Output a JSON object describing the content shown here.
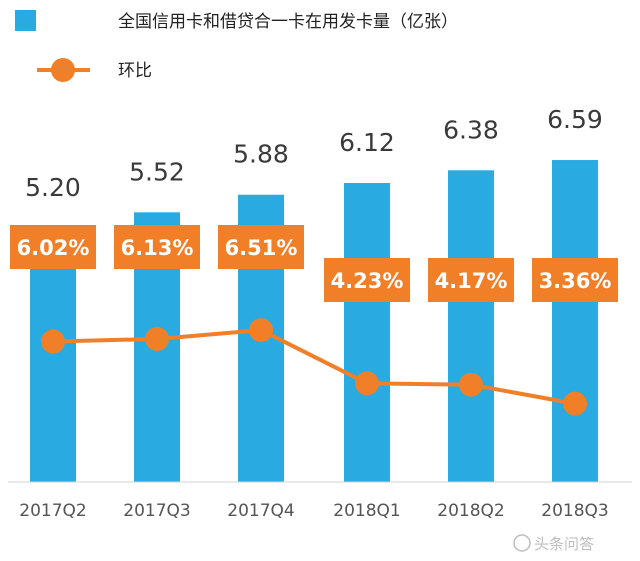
{
  "chart_data": {
    "type": "bar",
    "categories": [
      "2017Q2",
      "2017Q3",
      "2017Q4",
      "2018Q1",
      "2018Q2",
      "2018Q3"
    ],
    "series": [
      {
        "name": "全国信用卡和借贷合一卡在用发卡量（亿张）",
        "kind": "bar",
        "values": [
          5.2,
          5.52,
          5.88,
          6.12,
          6.38,
          6.59
        ],
        "labels": [
          "5.20",
          "5.52",
          "5.88",
          "6.12",
          "6.38",
          "6.59"
        ],
        "color": "#29ABE2"
      },
      {
        "name": "环比",
        "kind": "line",
        "values": [
          6.02,
          6.13,
          6.51,
          4.23,
          4.17,
          3.36
        ],
        "labels": [
          "6.02%",
          "6.13%",
          "6.51%",
          "4.23%",
          "4.17%",
          "3.36%"
        ],
        "color": "#F07F27"
      }
    ],
    "ylim": [
      0,
      7
    ],
    "line_ylim": [
      0,
      12
    ],
    "grid": false,
    "legend": "top-left"
  },
  "watermark": "头条问答"
}
